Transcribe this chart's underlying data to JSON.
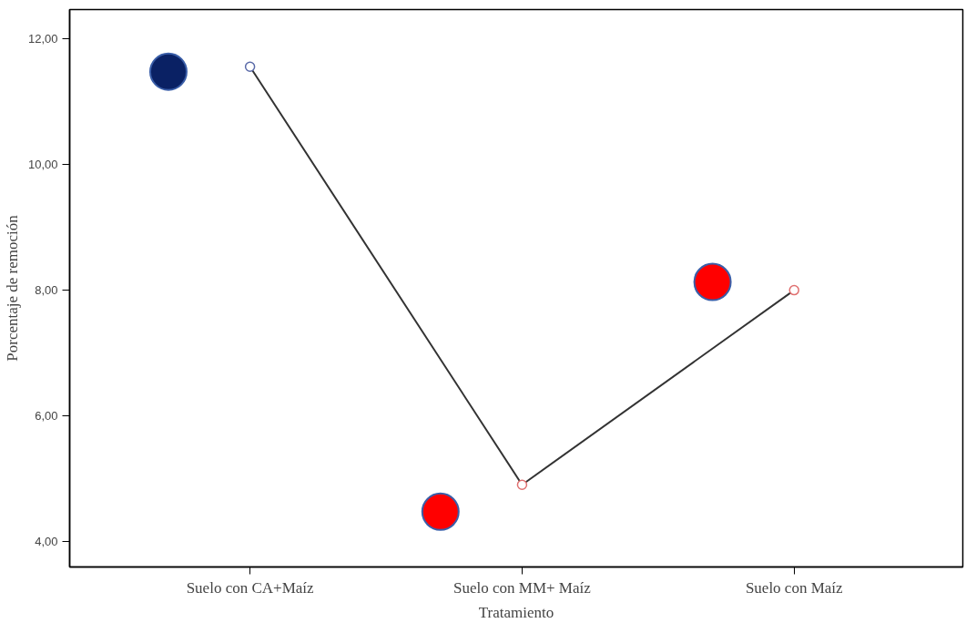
{
  "chart_data": {
    "type": "scatter",
    "xlabel": "Tratamiento",
    "ylabel": "Porcentaje de remoción",
    "categories": [
      "Suelo con CA+Maíz",
      "Suelo con MM+ Maíz",
      "Suelo con Maíz"
    ],
    "ylim": [
      3.59,
      12.47
    ],
    "yticks": [
      {
        "value": 4,
        "label": "4,00"
      },
      {
        "value": 6,
        "label": "6,00"
      },
      {
        "value": 8,
        "label": "8,00"
      },
      {
        "value": 10,
        "label": "10,00"
      },
      {
        "value": 12,
        "label": "12,00"
      }
    ],
    "grid": false,
    "marker": "circle",
    "series": [
      {
        "type": "line",
        "values": [
          11.56,
          4.9,
          8.0
        ],
        "color": "#333333",
        "colors": [
          "#5a6aa8",
          "#e07070",
          "#e07070"
        ]
      },
      {
        "x": [
          "Suelo con CA+Maíz",
          "Suelo con MM+ Maíz",
          "Suelo con Maíz"
        ],
        "values": [
          11.48,
          4.47,
          8.13
        ],
        "colors": [
          "#0a2164",
          "#ff0000",
          "#ff0000"
        ]
      }
    ]
  }
}
